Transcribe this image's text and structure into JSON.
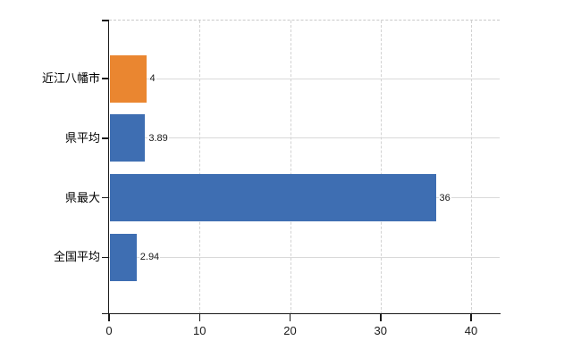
{
  "chart_data": {
    "type": "bar",
    "orientation": "horizontal",
    "title": "",
    "categories": [
      "近江八幡市",
      "県平均",
      "県最大",
      "全国平均"
    ],
    "values": [
      4,
      3.89,
      36,
      2.94
    ],
    "value_labels": [
      "4",
      "3.89",
      "36",
      "2.94"
    ],
    "series": [
      {
        "name": "highlighted-municipality",
        "values": [
          4
        ]
      },
      {
        "name": "comparison-values",
        "values": [
          3.89,
          36,
          2.94
        ]
      }
    ],
    "bar_colors": [
      "#EA8630",
      "#3E6EB2",
      "#3E6EB2",
      "#3E6EB2"
    ],
    "x_ticks": [
      0,
      10,
      20,
      30,
      40
    ],
    "x_tick_labels": [
      "0",
      "10",
      "20",
      "30",
      "40"
    ],
    "xlim": [
      0,
      43.2
    ],
    "grid": true,
    "legend": false,
    "colors": {
      "bar_orange": "#EA8630",
      "bar_blue": "#3E6EB2",
      "grid_line": "#D9D9D9",
      "axis_line": "#1A1A1A",
      "value_label": "#1A1A1A",
      "background": "#FFFFFF"
    }
  }
}
